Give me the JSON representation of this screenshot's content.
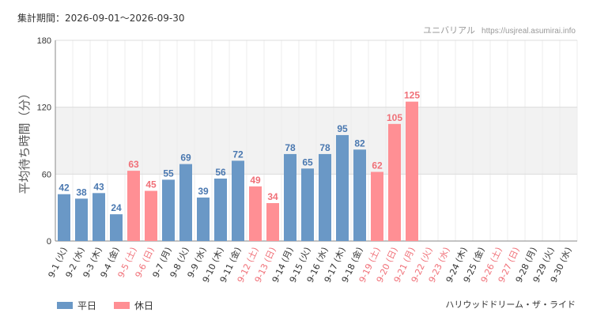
{
  "header": {
    "period": "集計期間：2026-09-01〜2026-09-30",
    "site_name": "ユニバリアル",
    "site_url": "https://usjreal.asumirai.info"
  },
  "legend": [
    {
      "label": "平日",
      "color": "#6a98c6"
    },
    {
      "label": "休日",
      "color": "#ff8f94"
    }
  ],
  "attraction_name": "ハリウッドドリーム・ザ・ライド",
  "chart_data": {
    "type": "bar",
    "ylabel": "平均待ち時間（分）",
    "ylim": [
      0,
      180
    ],
    "yticks": [
      0,
      60,
      120,
      180
    ],
    "highlight_band": [
      60,
      120
    ],
    "categories": [
      "9-1 (火)",
      "9-2 (水)",
      "9-3 (木)",
      "9-4 (金)",
      "9-5 (土)",
      "9-6 (日)",
      "9-7 (月)",
      "9-8 (火)",
      "9-9 (水)",
      "9-10 (木)",
      "9-11 (金)",
      "9-12 (土)",
      "9-13 (日)",
      "9-14 (月)",
      "9-15 (火)",
      "9-16 (水)",
      "9-17 (木)",
      "9-18 (金)",
      "9-19 (土)",
      "9-20 (日)",
      "9-21 (月)",
      "9-22 (火)",
      "9-23 (水)",
      "9-24 (木)",
      "9-25 (金)",
      "9-26 (土)",
      "9-27 (日)",
      "9-28 (月)",
      "9-29 (火)",
      "9-30 (水)"
    ],
    "values": [
      42,
      38,
      43,
      24,
      63,
      45,
      55,
      69,
      39,
      56,
      72,
      49,
      34,
      78,
      65,
      78,
      95,
      82,
      62,
      105,
      125,
      null,
      null,
      null,
      null,
      null,
      null,
      null,
      null,
      null
    ],
    "day_type": [
      "weekday",
      "weekday",
      "weekday",
      "weekday",
      "holiday",
      "holiday",
      "weekday",
      "weekday",
      "weekday",
      "weekday",
      "weekday",
      "holiday",
      "holiday",
      "weekday",
      "weekday",
      "weekday",
      "weekday",
      "weekday",
      "holiday",
      "holiday",
      "holiday",
      "holiday",
      "holiday",
      "weekday",
      "weekday",
      "holiday",
      "holiday",
      "weekday",
      "weekday",
      "weekday"
    ],
    "colors": {
      "weekday": "#6a98c6",
      "holiday": "#ff8f94",
      "weekday_text": "#4a78b0",
      "holiday_text": "#f07078",
      "axis_text": "#333333"
    }
  }
}
